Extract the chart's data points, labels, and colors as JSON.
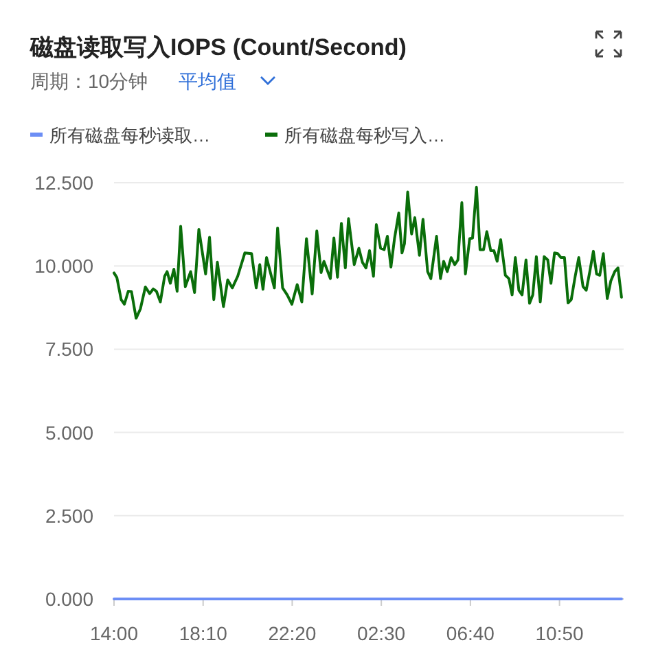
{
  "chart_data": {
    "type": "line",
    "title": "磁盘读取写入IOPS (Count/Second)",
    "subtitle": "周期：10分钟",
    "annotations": [
      "平均值"
    ],
    "xlim": [
      "--01-01T14:00",
      "--01-02T13:50"
    ],
    "xticks": [
      {
        "value": "--01-01T14:00",
        "label": "14:00"
      },
      {
        "value": "--01-01T18:10",
        "label": "18:10"
      },
      {
        "value": "--01-01T22:20",
        "label": "22:20"
      },
      {
        "value": "--01-02T02:30",
        "label": "02:30"
      },
      {
        "value": "--01-02T06:40",
        "label": "06:40"
      },
      {
        "value": "--01-02T10:50",
        "label": "10:50"
      }
    ],
    "ylim": [
      0,
      12.5
    ],
    "yticks": [
      {
        "value": 0,
        "label": "0.000"
      },
      {
        "value": 2.5,
        "label": "2.500"
      },
      {
        "value": 5,
        "label": "5.000"
      },
      {
        "value": 7.5,
        "label": "7.500"
      },
      {
        "value": 10,
        "label": "10.000"
      },
      {
        "value": 12.5,
        "label": "12.500"
      }
    ],
    "grid": "y",
    "legend": "top left",
    "marker": "none",
    "line_style": "solid",
    "series": [
      {
        "name": "所有磁盘每秒读取…",
        "color": "#6c8ef5",
        "x": [
          "--01-01T14:00",
          "--01-02T13:44"
        ],
        "values": [
          0,
          0
        ]
      },
      {
        "name": "所有磁盘每秒写入…",
        "color": "#0a6e0a",
        "x": [
          "--01-01T14:00",
          "--01-01T14:08",
          "--01-01T14:20",
          "--01-01T14:29",
          "--01-01T14:40",
          "--01-01T14:49",
          "--01-01T15:02",
          "--01-01T15:14",
          "--01-01T15:28",
          "--01-01T15:40",
          "--01-01T15:50",
          "--01-01T15:59",
          "--01-01T16:10",
          "--01-01T16:22",
          "--01-01T16:29",
          "--01-01T16:38",
          "--01-01T16:48",
          "--01-01T16:57",
          "--01-01T17:07",
          "--01-01T17:20",
          "--01-01T17:35",
          "--01-01T17:46",
          "--01-01T17:58",
          "--01-01T18:17",
          "--01-01T18:28",
          "--01-01T18:40",
          "--01-01T18:50",
          "--01-01T19:07",
          "--01-01T19:19",
          "--01-01T19:32",
          "--01-01T19:47",
          "--01-01T20:07",
          "--01-01T20:26",
          "--01-01T20:39",
          "--01-01T20:49",
          "--01-01T20:58",
          "--01-01T21:08",
          "--01-01T21:30",
          "--01-01T21:39",
          "--01-01T21:53",
          "--01-01T22:06",
          "--01-01T22:19",
          "--01-01T22:34",
          "--01-01T22:47",
          "--01-01T23:00",
          "--01-01T23:16",
          "--01-01T23:29",
          "--01-01T23:41",
          "--01-01T23:49",
          "--01-02T00:07",
          "--01-02T00:17",
          "--01-02T00:27",
          "--01-02T00:38",
          "--01-02T00:49",
          "--01-02T00:58",
          "--01-02T01:14",
          "--01-02T01:27",
          "--01-02T01:37",
          "--01-02T01:47",
          "--01-02T01:57",
          "--01-02T02:08",
          "--01-02T02:16",
          "--01-02T02:28",
          "--01-02T02:38",
          "--01-02T02:47",
          "--01-02T02:57",
          "--01-02T03:07",
          "--01-02T03:19",
          "--01-02T03:28",
          "--01-02T03:35",
          "--01-02T03:44",
          "--01-02T03:55",
          "--01-02T04:04",
          "--01-02T04:17",
          "--01-02T04:27",
          "--01-02T04:40",
          "--01-02T04:49",
          "--01-02T05:05",
          "--01-02T05:16",
          "--01-02T05:25",
          "--01-02T05:35",
          "--01-02T05:46",
          "--01-02T05:56",
          "--01-02T06:05",
          "--01-02T06:16",
          "--01-02T06:26",
          "--01-02T06:38",
          "--01-02T06:46",
          "--01-02T06:57",
          "--01-02T07:07",
          "--01-02T07:17",
          "--01-02T07:26",
          "--01-02T07:37",
          "--01-02T07:46",
          "--01-02T07:55",
          "--01-02T08:05",
          "--01-02T08:18",
          "--01-02T08:28",
          "--01-02T08:37",
          "--01-02T08:46",
          "--01-02T08:56",
          "--01-02T09:05",
          "--01-02T09:16",
          "--01-02T09:26",
          "--01-02T09:35",
          "--01-02T09:45",
          "--01-02T09:56",
          "--01-02T10:07",
          "--01-02T10:17",
          "--01-02T10:26",
          "--01-02T10:36",
          "--01-02T10:45",
          "--01-02T10:54",
          "--01-02T11:04",
          "--01-02T11:14",
          "--01-02T11:23",
          "--01-02T11:34",
          "--01-02T11:44",
          "--01-02T11:56",
          "--01-02T12:05",
          "--01-02T12:15",
          "--01-02T12:25",
          "--01-02T12:34",
          "--01-02T12:43",
          "--01-02T12:53",
          "--01-02T13:04",
          "--01-02T13:14",
          "--01-02T13:25",
          "--01-02T13:34",
          "--01-02T13:44"
        ],
        "values": [
          9.79,
          9.65,
          8.99,
          8.85,
          9.24,
          9.23,
          8.43,
          8.71,
          9.37,
          9.17,
          9.31,
          9.24,
          8.92,
          9.69,
          9.83,
          9.48,
          9.9,
          9.24,
          11.19,
          9.38,
          9.83,
          9.2,
          11.1,
          9.76,
          10.86,
          8.99,
          10.11,
          8.78,
          9.58,
          9.34,
          9.69,
          10.39,
          10.37,
          9.34,
          10.04,
          9.3,
          10.25,
          9.34,
          11.14,
          9.34,
          9.13,
          8.85,
          9.44,
          8.92,
          10.82,
          9.16,
          11.05,
          9.8,
          10.14,
          9.62,
          10.84,
          9.66,
          11.28,
          9.94,
          11.42,
          10.04,
          10.53,
          10.11,
          9.94,
          10.46,
          9.69,
          11.24,
          10.53,
          10.49,
          10.89,
          9.97,
          10.82,
          11.59,
          10.39,
          10.67,
          12.22,
          10.96,
          11.45,
          10.32,
          11.4,
          9.83,
          9.62,
          10.89,
          9.62,
          10.14,
          9.83,
          10.25,
          10.04,
          10.18,
          11.9,
          9.76,
          10.82,
          10.84,
          12.36,
          10.49,
          10.49,
          11.03,
          10.46,
          10.46,
          10.14,
          10.79,
          9.72,
          9.62,
          9.13,
          10.25,
          9.27,
          9.13,
          10.18,
          8.88,
          9.13,
          10.28,
          8.92,
          10.28,
          10.18,
          9.48,
          10.39,
          10.37,
          10.25,
          10.25,
          8.89,
          8.99,
          9.69,
          10.25,
          9.38,
          9.27,
          9.83,
          10.44,
          9.76,
          9.72,
          10.37,
          9.02,
          9.55,
          9.83,
          9.94,
          9.06
        ]
      }
    ]
  }
}
